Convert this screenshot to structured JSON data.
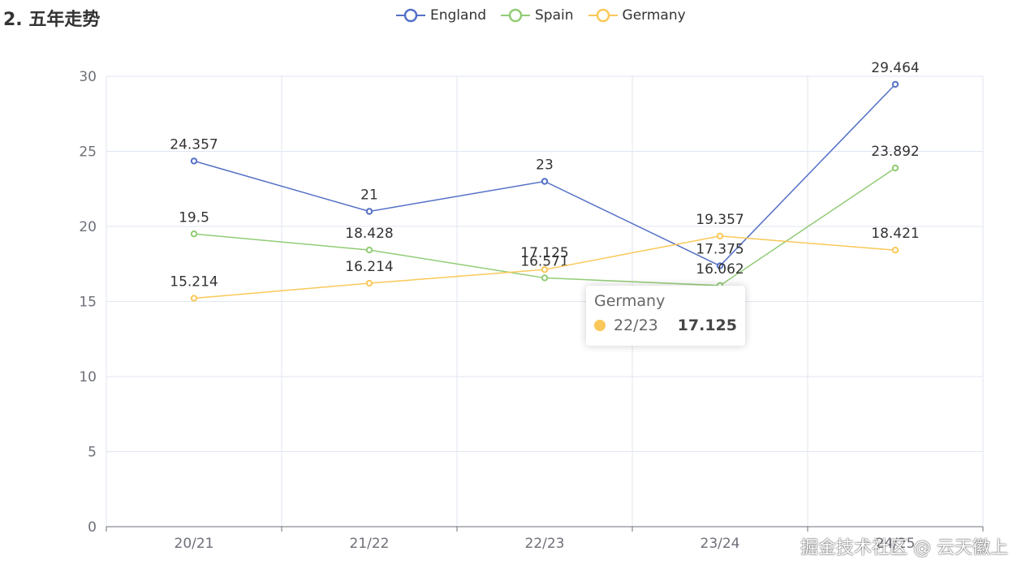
{
  "section_title": "2. 五年走势",
  "watermark": "掘金技术社区 @ 云天徽上",
  "tooltip": {
    "series": "Germany",
    "category": "22/23",
    "value": "17.125",
    "color": "#fac858"
  },
  "chart_data": {
    "type": "line",
    "categories": [
      "20/21",
      "21/22",
      "22/23",
      "23/24",
      "24/25"
    ],
    "ylim": [
      0,
      30
    ],
    "yticks": [
      0,
      5,
      10,
      15,
      20,
      25,
      30
    ],
    "grid": true,
    "legend_position": "top-center",
    "series": [
      {
        "name": "England",
        "color": "#5470c6",
        "values": [
          24.357,
          21,
          23,
          17.375,
          29.464
        ],
        "labels": [
          "24.357",
          "21",
          "23",
          "17.375",
          "29.464"
        ]
      },
      {
        "name": "Spain",
        "color": "#91cc75",
        "values": [
          19.5,
          18.428,
          16.571,
          16.062,
          23.892
        ],
        "labels": [
          "19.5",
          "18.428",
          "16.571",
          "16.062",
          "23.892"
        ]
      },
      {
        "name": "Germany",
        "color": "#fac858",
        "values": [
          15.214,
          16.214,
          17.125,
          19.357,
          18.421
        ],
        "labels": [
          "15.214",
          "16.214",
          "17.125",
          "19.357",
          "18.421"
        ]
      }
    ]
  }
}
